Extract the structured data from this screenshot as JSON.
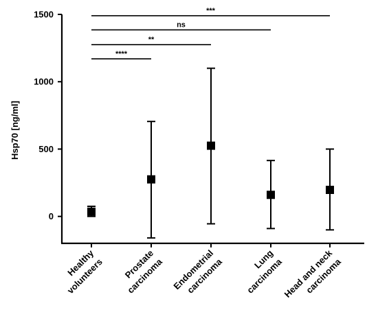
{
  "chart_data": {
    "type": "scatter",
    "ylabel": "Hsp70 [ng/ml]",
    "ylim": [
      -200,
      1500
    ],
    "yticks": [
      0,
      500,
      1000,
      1500
    ],
    "categories": [
      [
        "Healthy",
        "volunteers"
      ],
      [
        "Prostate",
        "carcinoma"
      ],
      [
        "Endometrial",
        "carcinoma"
      ],
      [
        "Lung",
        "carcinoma"
      ],
      [
        "Head and neck",
        "carcinoma"
      ]
    ],
    "series": [
      {
        "values": [
          35,
          275,
          525,
          160,
          197
        ],
        "lower": [
          0,
          -160,
          -55,
          -90,
          -100
        ],
        "upper": [
          75,
          705,
          1100,
          415,
          500
        ]
      }
    ],
    "significance": [
      {
        "from": 0,
        "to": 1,
        "label": "****",
        "y": 1170
      },
      {
        "from": 0,
        "to": 2,
        "label": "**",
        "y": 1275
      },
      {
        "from": 0,
        "to": 3,
        "label": "ns",
        "y": 1385
      },
      {
        "from": 0,
        "to": 4,
        "label": "***",
        "y": 1490
      }
    ]
  }
}
